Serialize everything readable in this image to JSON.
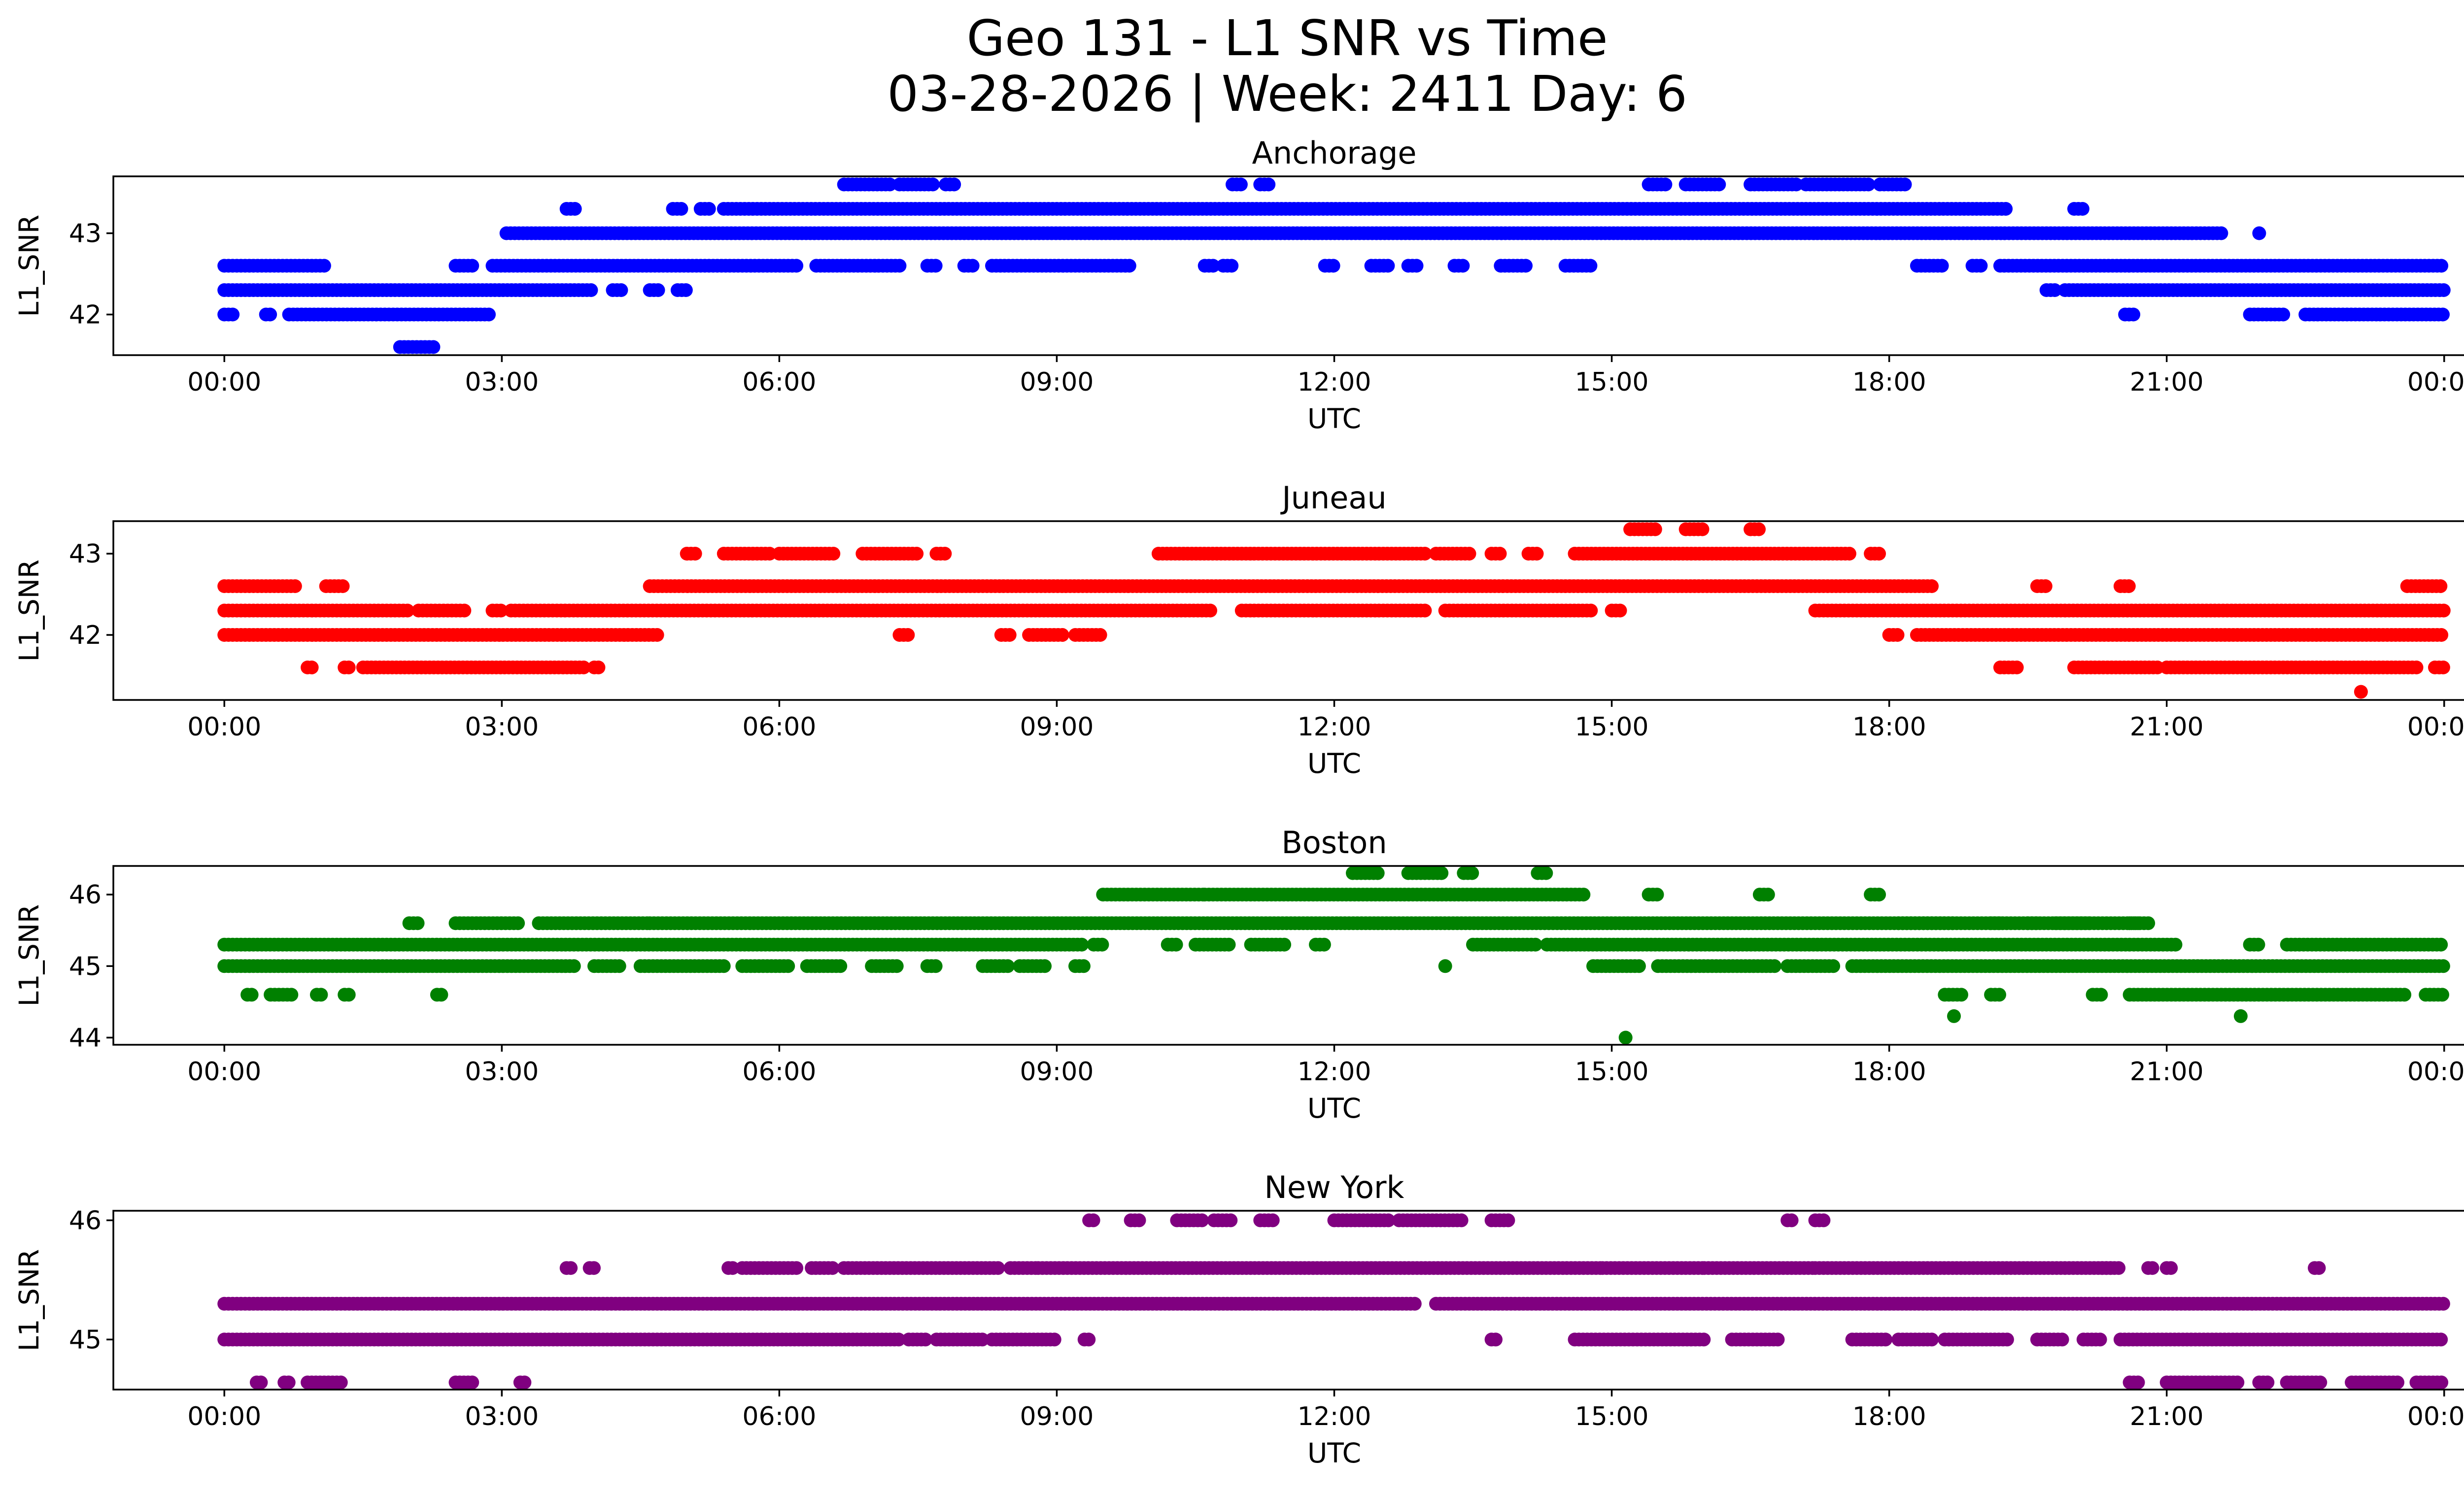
{
  "chart_data": {
    "type": "scatter",
    "title_line1": "Geo 131 - L1 SNR vs Time",
    "title_line2": "03-28-2026 | Week: 2411 Day: 6",
    "x_ticks": [
      "00:00",
      "03:00",
      "06:00",
      "09:00",
      "12:00",
      "15:00",
      "18:00",
      "21:00",
      "00:00"
    ],
    "panels": [
      {
        "title": "Anchorage",
        "color": "#0000ff",
        "xlabel": "UTC",
        "ylabel": "L1_SNR",
        "xlim": [
          -1.2,
          25.2
        ],
        "ylim": [
          41.5,
          43.7
        ],
        "yticks": [
          "42",
          "43"
        ],
        "runs": [
          {
            "y": 42.0,
            "segments": [
              [
                0.0,
                0.1
              ],
              [
                0.45,
                0.5
              ],
              [
                0.7,
                2.9
              ],
              [
                20.55,
                20.65
              ],
              [
                21.9,
                22.3
              ],
              [
                22.5,
                24.0
              ]
            ]
          },
          {
            "y": 42.3,
            "segments": [
              [
                0.0,
                3.2
              ],
              [
                3.2,
                4.0
              ],
              [
                4.2,
                4.3
              ],
              [
                4.6,
                4.7
              ],
              [
                4.9,
                5.0
              ],
              [
                19.7,
                19.8
              ],
              [
                19.9,
                24.0
              ]
            ]
          },
          {
            "y": 42.6,
            "segments": [
              [
                0.0,
                1.1
              ],
              [
                2.5,
                2.7
              ],
              [
                2.9,
                6.2
              ],
              [
                6.4,
                7.3
              ],
              [
                7.6,
                7.7
              ],
              [
                8.0,
                8.1
              ],
              [
                8.3,
                9.8
              ],
              [
                10.6,
                10.7
              ],
              [
                10.8,
                10.9
              ],
              [
                11.9,
                12.0
              ],
              [
                12.4,
                12.6
              ],
              [
                12.8,
                12.9
              ],
              [
                13.3,
                13.4
              ],
              [
                13.8,
                14.1
              ],
              [
                14.5,
                14.8
              ],
              [
                18.3,
                18.6
              ],
              [
                18.9,
                19.0
              ],
              [
                19.2,
                24.0
              ]
            ]
          },
          {
            "y": 43.0,
            "segments": [
              [
                3.05,
                21.6
              ]
            ]
          },
          {
            "y": 43.3,
            "segments": [
              [
                3.7,
                3.8
              ],
              [
                4.85,
                4.95
              ],
              [
                5.15,
                5.25
              ],
              [
                5.4,
                19.3
              ],
              [
                20.0,
                20.1
              ]
            ]
          },
          {
            "y": 43.6,
            "segments": [
              [
                6.7,
                7.2
              ],
              [
                7.3,
                7.7
              ],
              [
                7.8,
                7.9
              ],
              [
                10.9,
                11.0
              ],
              [
                11.2,
                11.3
              ],
              [
                15.4,
                15.6
              ],
              [
                15.8,
                16.2
              ],
              [
                16.5,
                17.0
              ],
              [
                17.1,
                17.8
              ],
              [
                17.9,
                18.2
              ]
            ]
          },
          {
            "y": 41.6,
            "segments": [
              [
                1.9,
                2.3
              ]
            ]
          }
        ],
        "points": [
          [
            22.0,
            43.0
          ]
        ]
      },
      {
        "title": "Juneau",
        "color": "#ff0000",
        "xlabel": "UTC",
        "ylabel": "L1_SNR",
        "xlim": [
          -1.2,
          25.2
        ],
        "ylim": [
          41.2,
          43.4
        ],
        "yticks": [
          "42",
          "43"
        ],
        "runs": [
          {
            "y": 41.6,
            "segments": [
              [
                0.9,
                0.95
              ],
              [
                1.3,
                1.35
              ],
              [
                1.5,
                3.9
              ],
              [
                4.0,
                4.05
              ],
              [
                19.2,
                19.4
              ],
              [
                20.0,
                20.9
              ],
              [
                21.0,
                23.7
              ],
              [
                23.9,
                24.0
              ]
            ]
          },
          {
            "y": 42.0,
            "segments": [
              [
                0.0,
                4.7
              ],
              [
                7.3,
                7.4
              ],
              [
                8.4,
                8.5
              ],
              [
                8.7,
                9.1
              ],
              [
                9.2,
                9.5
              ],
              [
                18.0,
                18.1
              ],
              [
                18.3,
                24.0
              ]
            ]
          },
          {
            "y": 42.3,
            "segments": [
              [
                0.0,
                2.0
              ],
              [
                2.1,
                2.6
              ],
              [
                2.9,
                3.0
              ],
              [
                3.1,
                10.7
              ],
              [
                11.0,
                13.0
              ],
              [
                13.2,
                14.8
              ],
              [
                15.0,
                15.1
              ],
              [
                17.2,
                24.0
              ]
            ]
          },
          {
            "y": 42.6,
            "segments": [
              [
                0.0,
                0.8
              ],
              [
                1.1,
                1.3
              ],
              [
                4.6,
                18.5
              ],
              [
                19.6,
                19.7
              ],
              [
                20.5,
                20.6
              ],
              [
                23.6,
                24.0
              ]
            ]
          },
          {
            "y": 43.0,
            "segments": [
              [
                5.0,
                5.1
              ],
              [
                5.4,
                5.9
              ],
              [
                6.0,
                6.6
              ],
              [
                6.9,
                7.5
              ],
              [
                7.7,
                7.8
              ],
              [
                10.1,
                13.0
              ],
              [
                13.1,
                13.5
              ],
              [
                13.7,
                13.8
              ],
              [
                14.1,
                14.2
              ],
              [
                14.6,
                17.6
              ],
              [
                17.8,
                17.9
              ]
            ]
          },
          {
            "y": 43.3,
            "segments": [
              [
                15.2,
                15.5
              ],
              [
                15.8,
                16.0
              ],
              [
                16.5,
                16.6
              ]
            ]
          }
        ],
        "points": [
          [
            23.1,
            41.3
          ]
        ]
      },
      {
        "title": "Boston",
        "color": "#008000",
        "xlabel": "UTC",
        "ylabel": "L1_SNR",
        "xlim": [
          -1.2,
          25.2
        ],
        "ylim": [
          43.9,
          46.4
        ],
        "yticks": [
          "44",
          "45",
          "46"
        ],
        "runs": [
          {
            "y": 44.6,
            "segments": [
              [
                0.25,
                0.3
              ],
              [
                0.5,
                0.75
              ],
              [
                1.0,
                1.05
              ],
              [
                1.3,
                1.35
              ],
              [
                2.3,
                2.35
              ],
              [
                18.6,
                18.8
              ],
              [
                19.1,
                19.2
              ],
              [
                20.2,
                20.3
              ],
              [
                20.6,
                23.6
              ],
              [
                23.8,
                24.0
              ]
            ]
          },
          {
            "y": 45.0,
            "segments": [
              [
                0.0,
                3.8
              ],
              [
                4.0,
                4.3
              ],
              [
                4.5,
                5.4
              ],
              [
                5.6,
                6.1
              ],
              [
                6.3,
                6.7
              ],
              [
                7.0,
                7.3
              ],
              [
                7.6,
                7.7
              ],
              [
                8.2,
                8.5
              ],
              [
                8.6,
                8.9
              ],
              [
                9.2,
                9.3
              ],
              [
                14.8,
                15.3
              ],
              [
                15.5,
                16.8
              ],
              [
                16.9,
                17.4
              ],
              [
                17.6,
                24.0
              ]
            ]
          },
          {
            "y": 45.3,
            "segments": [
              [
                0.0,
                9.3
              ],
              [
                9.4,
                9.5
              ],
              [
                10.2,
                10.3
              ],
              [
                10.5,
                10.9
              ],
              [
                11.1,
                11.5
              ],
              [
                11.8,
                11.9
              ],
              [
                13.5,
                14.2
              ],
              [
                14.3,
                21.1
              ],
              [
                21.9,
                22.0
              ],
              [
                22.3,
                24.0
              ]
            ]
          },
          {
            "y": 45.6,
            "segments": [
              [
                2.0,
                2.1
              ],
              [
                2.5,
                3.2
              ],
              [
                3.4,
                4.6
              ],
              [
                4.6,
                20.8
              ],
              [
                18.1,
                18.7
              ],
              [
                19.1,
                19.2
              ],
              [
                19.5,
                19.6
              ],
              [
                19.8,
                20.2
              ],
              [
                20.6,
                20.7
              ]
            ]
          },
          {
            "y": 46.0,
            "segments": [
              [
                9.5,
                10.6
              ],
              [
                10.6,
                14.7
              ],
              [
                16.6,
                16.7
              ],
              [
                17.8,
                17.9
              ],
              [
                15.4,
                15.5
              ]
            ]
          },
          {
            "y": 46.3,
            "segments": [
              [
                12.2,
                12.5
              ],
              [
                12.8,
                13.2
              ],
              [
                13.4,
                13.5
              ],
              [
                14.2,
                14.3
              ]
            ]
          }
        ],
        "points": [
          [
            15.15,
            44.0
          ],
          [
            13.2,
            45.0
          ],
          [
            18.7,
            44.3
          ],
          [
            21.8,
            44.3
          ]
        ]
      },
      {
        "title": "New York",
        "color": "#800080",
        "xlabel": "UTC",
        "ylabel": "L1_SNR",
        "xlim": [
          -1.2,
          25.2
        ],
        "ylim": [
          44.58,
          46.08
        ],
        "yticks": [
          "45",
          "46"
        ],
        "runs": [
          {
            "y": 44.64,
            "segments": [
              [
                0.35,
                0.4
              ],
              [
                0.65,
                0.7
              ],
              [
                0.9,
                1.3
              ],
              [
                2.5,
                2.7
              ],
              [
                3.2,
                3.25
              ],
              [
                20.6,
                20.7
              ],
              [
                21.0,
                21.8
              ],
              [
                22.0,
                22.1
              ],
              [
                22.3,
                22.7
              ],
              [
                23.0,
                23.5
              ],
              [
                23.7,
                24.0
              ]
            ]
          },
          {
            "y": 45.0,
            "segments": [
              [
                0.0,
                7.3
              ],
              [
                7.4,
                7.6
              ],
              [
                7.7,
                8.2
              ],
              [
                8.3,
                9.0
              ],
              [
                9.3,
                9.35
              ],
              [
                13.7,
                13.75
              ],
              [
                14.6,
                16.0
              ],
              [
                16.3,
                16.8
              ],
              [
                17.6,
                18.0
              ],
              [
                18.1,
                18.5
              ],
              [
                18.6,
                19.3
              ],
              [
                19.6,
                19.9
              ],
              [
                20.1,
                20.3
              ],
              [
                20.5,
                24.0
              ]
            ]
          },
          {
            "y": 45.3,
            "segments": [
              [
                0.0,
                12.9
              ],
              [
                13.1,
                24.0
              ]
            ]
          },
          {
            "y": 45.6,
            "segments": [
              [
                3.7,
                3.75
              ],
              [
                3.95,
                4.0
              ],
              [
                5.45,
                5.5
              ],
              [
                5.6,
                6.2
              ],
              [
                6.35,
                6.6
              ],
              [
                6.7,
                8.4
              ],
              [
                8.5,
                8.8
              ],
              [
                8.8,
                14.9
              ],
              [
                14.9,
                16.0
              ],
              [
                16.0,
                17.2
              ],
              [
                17.2,
                20.4
              ],
              [
                20.3,
                20.5
              ],
              [
                20.8,
                20.85
              ],
              [
                21.0,
                21.05
              ],
              [
                22.6,
                22.65
              ]
            ]
          },
          {
            "y": 46.0,
            "segments": [
              [
                9.35,
                9.4
              ],
              [
                9.8,
                9.9
              ],
              [
                10.3,
                10.6
              ],
              [
                10.7,
                10.9
              ],
              [
                11.2,
                11.35
              ],
              [
                12.0,
                12.6
              ],
              [
                12.7,
                13.4
              ],
              [
                13.7,
                13.9
              ],
              [
                16.9,
                16.95
              ],
              [
                17.2,
                17.3
              ]
            ]
          }
        ],
        "points": []
      }
    ]
  }
}
